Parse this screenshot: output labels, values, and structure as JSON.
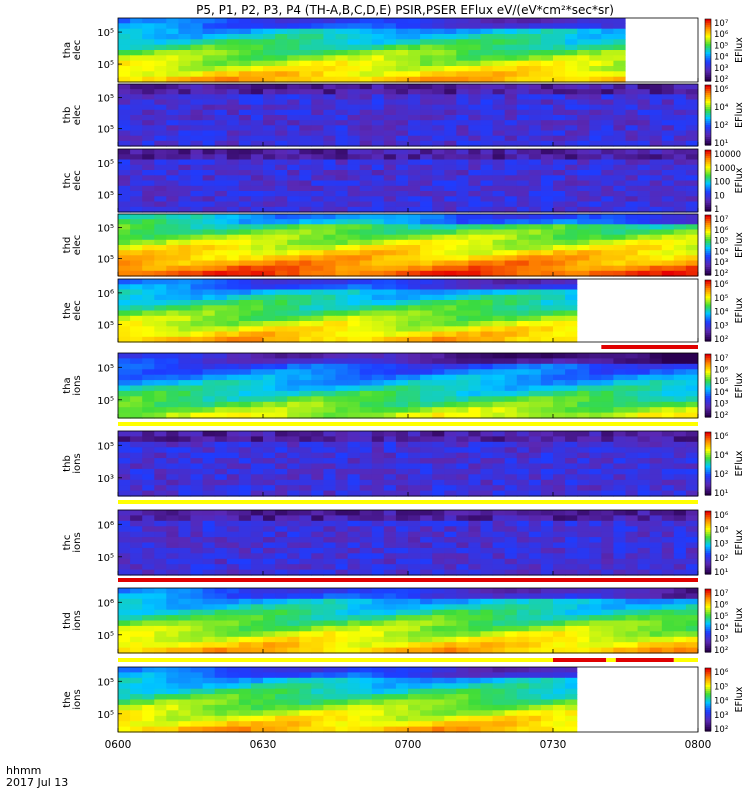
{
  "chart_data": {
    "type": "heatmap",
    "title": "P5, P1, P2, P3, P4 (TH-A,B,C,D,E) PSIR,PSER EFlux eV/(eV*cm²*sec*sr)",
    "xaxis": {
      "unit_label": "hhmm",
      "date_label": "2017 Jul 13",
      "ticks": [
        "0600",
        "0630",
        "0700",
        "0730",
        "0800"
      ],
      "range": [
        "06:00",
        "08:00"
      ]
    },
    "colorbar_label": "EFlux",
    "panels": [
      {
        "probe": "tha",
        "species": "elec",
        "y_ticks": [
          "10⁵",
          "10⁵"
        ],
        "colorbar_ticks": [
          "10⁷",
          "10⁶",
          "10⁵",
          "10⁴",
          "10³",
          "10²"
        ],
        "flux_level": "high",
        "data_end": "07:45",
        "status_bar": []
      },
      {
        "probe": "thb",
        "species": "elec",
        "y_ticks": [
          "10⁵",
          "10⁵"
        ],
        "colorbar_ticks": [
          "10⁶",
          "10⁴",
          "10²",
          "10¹"
        ],
        "flux_level": "low",
        "data_end": "08:00",
        "status_bar": []
      },
      {
        "probe": "thc",
        "species": "elec",
        "y_ticks": [
          "10⁵",
          "10⁵"
        ],
        "colorbar_ticks": [
          "10000",
          "1000",
          "100",
          "10",
          "1"
        ],
        "flux_level": "low",
        "data_end": "08:00",
        "status_bar": []
      },
      {
        "probe": "thd",
        "species": "elec",
        "y_ticks": [
          "10⁵",
          "10⁵"
        ],
        "colorbar_ticks": [
          "10⁷",
          "10⁶",
          "10⁵",
          "10⁴",
          "10³",
          "10²"
        ],
        "flux_level": "very-high",
        "data_end": "08:00",
        "status_bar": []
      },
      {
        "probe": "the",
        "species": "elec",
        "y_ticks": [
          "10⁶",
          "10⁵"
        ],
        "colorbar_ticks": [
          "10⁶",
          "10⁵",
          "10⁴",
          "10³",
          "10²"
        ],
        "flux_level": "high",
        "data_end": "07:35",
        "status_bar": [
          {
            "from": "07:40",
            "to": "08:00",
            "color": "#e00000"
          }
        ]
      },
      {
        "probe": "tha",
        "species": "ions",
        "y_ticks": [
          "10⁵",
          "10⁵"
        ],
        "colorbar_ticks": [
          "10⁷",
          "10⁶",
          "10⁵",
          "10⁴",
          "10³",
          "10²"
        ],
        "flux_level": "medium",
        "data_end": "08:00",
        "status_bar": [
          {
            "from": "06:00",
            "to": "08:00",
            "color": "#ffff00"
          }
        ]
      },
      {
        "probe": "thb",
        "species": "ions",
        "y_ticks": [
          "10⁵",
          "10³"
        ],
        "colorbar_ticks": [
          "10⁶",
          "10⁴",
          "10²",
          "10¹"
        ],
        "flux_level": "low",
        "data_end": "08:00",
        "status_bar": [
          {
            "from": "06:00",
            "to": "08:00",
            "color": "#ffff00"
          }
        ]
      },
      {
        "probe": "thc",
        "species": "ions",
        "y_ticks": [
          "10⁶",
          "10⁵"
        ],
        "colorbar_ticks": [
          "10⁶",
          "10⁴",
          "10³",
          "10²",
          "10¹"
        ],
        "flux_level": "low",
        "data_end": "08:00",
        "status_bar": [
          {
            "from": "06:00",
            "to": "08:00",
            "color": "#e00000"
          }
        ]
      },
      {
        "probe": "thd",
        "species": "ions",
        "y_ticks": [
          "10⁶",
          "10⁵"
        ],
        "colorbar_ticks": [
          "10⁷",
          "10⁶",
          "10⁵",
          "10⁴",
          "10³",
          "10²"
        ],
        "flux_level": "high",
        "data_end": "08:00",
        "status_bar": [
          {
            "from": "06:00",
            "to": "07:30",
            "color": "#ffff00"
          },
          {
            "from": "07:30",
            "to": "07:41",
            "color": "#e00000"
          },
          {
            "from": "07:41",
            "to": "07:43",
            "color": "#ffff00"
          },
          {
            "from": "07:43",
            "to": "07:55",
            "color": "#e00000"
          },
          {
            "from": "07:55",
            "to": "08:00",
            "color": "#ffff00"
          }
        ]
      },
      {
        "probe": "the",
        "species": "ions",
        "y_ticks": [
          "10⁵",
          "10⁵"
        ],
        "colorbar_ticks": [
          "10⁶",
          "10⁵",
          "10⁴",
          "10³",
          "10²"
        ],
        "flux_level": "high",
        "data_end": "07:35",
        "status_bar": []
      }
    ]
  }
}
